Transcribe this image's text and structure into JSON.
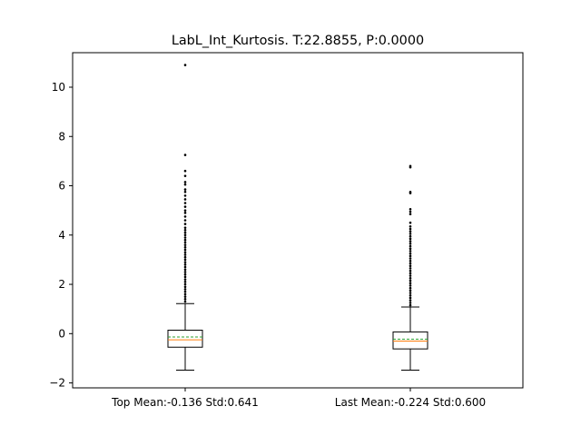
{
  "chart_data": {
    "type": "box",
    "title": "LabL_Int_Kurtosis. T:22.8855, P:0.0000",
    "xlabel": "",
    "ylabel": "",
    "ylim": [
      -2.2,
      11.4
    ],
    "y_ticks": [
      -2,
      0,
      2,
      4,
      6,
      8,
      10
    ],
    "grid": false,
    "categories": [
      "Top Mean:-0.136 Std:0.641",
      "Last Mean:-0.224 Std:0.600"
    ],
    "boxes": [
      {
        "label": "Top Mean:-0.136 Std:0.641",
        "whisker_low": -1.48,
        "q1": -0.55,
        "median": -0.25,
        "mean": -0.136,
        "q3": 0.14,
        "whisker_high": 1.22,
        "outliers": [
          1.3,
          1.4,
          1.5,
          1.6,
          1.7,
          1.8,
          1.9,
          2.0,
          2.1,
          2.2,
          2.3,
          2.4,
          2.5,
          2.6,
          2.7,
          2.8,
          2.9,
          3.0,
          3.1,
          3.2,
          3.3,
          3.4,
          3.5,
          3.6,
          3.7,
          3.8,
          3.9,
          4.0,
          4.1,
          4.2,
          4.3,
          4.45,
          4.6,
          4.75,
          4.9,
          5.0,
          5.15,
          5.3,
          5.45,
          5.6,
          5.75,
          5.85,
          6.05,
          6.15,
          6.4,
          6.6,
          7.25,
          10.9
        ]
      },
      {
        "label": "Last Mean:-0.224 Std:0.600",
        "whisker_low": -1.48,
        "q1": -0.62,
        "median": -0.3,
        "mean": -0.224,
        "q3": 0.07,
        "whisker_high": 1.08,
        "outliers": [
          1.15,
          1.25,
          1.35,
          1.45,
          1.55,
          1.65,
          1.75,
          1.85,
          1.95,
          2.05,
          2.15,
          2.25,
          2.35,
          2.45,
          2.55,
          2.65,
          2.75,
          2.85,
          2.95,
          3.05,
          3.15,
          3.25,
          3.35,
          3.45,
          3.55,
          3.65,
          3.75,
          3.85,
          3.95,
          4.05,
          4.15,
          4.25,
          4.35,
          4.5,
          4.85,
          4.95,
          5.05,
          5.7,
          5.75,
          6.75,
          6.8
        ]
      }
    ],
    "colors": {
      "box": "#000000",
      "median": "#ff7f0e",
      "mean": "#2ca02c",
      "outlier": "#000000"
    }
  }
}
